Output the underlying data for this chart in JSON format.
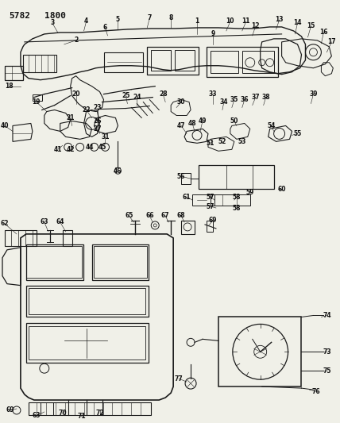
{
  "title": "5782  1800",
  "bg_color": "#e8e8e0",
  "line_color": "#1a1a1a",
  "text_color": "#111111",
  "figsize": [
    4.28,
    5.33
  ],
  "dpi": 100
}
